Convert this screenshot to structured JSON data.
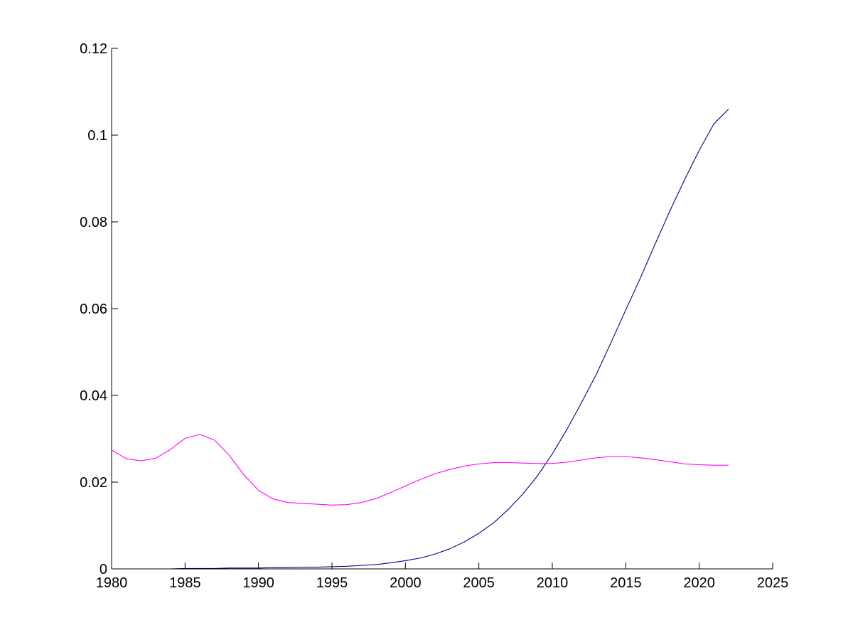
{
  "chart_data": {
    "type": "line",
    "title": "",
    "xlabel": "",
    "ylabel": "",
    "xlim": [
      1980,
      2025
    ],
    "ylim": [
      0,
      0.12
    ],
    "grid": false,
    "x_ticks": [
      1980,
      1985,
      1990,
      1995,
      2000,
      2005,
      2010,
      2015,
      2020,
      2025
    ],
    "x_tick_labels": [
      "1980",
      "1985",
      "1990",
      "1995",
      "2000",
      "2005",
      "2010",
      "2015",
      "2020",
      "2025"
    ],
    "y_ticks": [
      0,
      0.02,
      0.04,
      0.06,
      0.08,
      0.1,
      0.12
    ],
    "y_tick_labels": [
      "0",
      "0.02",
      "0.04",
      "0.06",
      "0.08",
      "0.1",
      "0.12"
    ],
    "colors": {
      "axis": "#000000",
      "background": "#ffffff"
    },
    "series": [
      {
        "color": "#00008b",
        "x": [
          1980,
          1981,
          1982,
          1983,
          1984,
          1985,
          1986,
          1987,
          1988,
          1989,
          1990,
          1991,
          1992,
          1993,
          1994,
          1995,
          1996,
          1997,
          1998,
          1999,
          2000,
          2001,
          2002,
          2003,
          2004,
          2005,
          2006,
          2007,
          2008,
          2009,
          2010,
          2011,
          2012,
          2013,
          2014,
          2015,
          2016,
          2017,
          2018,
          2019,
          2020,
          2021,
          2022
        ],
        "values": [
          0.0,
          0.0,
          0.0,
          0.0,
          0.0,
          0.0001,
          0.0001,
          0.0001,
          0.0002,
          0.0002,
          0.0002,
          0.0003,
          0.0003,
          0.0004,
          0.0004,
          0.0005,
          0.0006,
          0.0008,
          0.001,
          0.0014,
          0.0019,
          0.0025,
          0.0034,
          0.0046,
          0.0062,
          0.0082,
          0.0106,
          0.0137,
          0.0173,
          0.0215,
          0.0265,
          0.0322,
          0.0384,
          0.0449,
          0.0522,
          0.0597,
          0.0671,
          0.0749,
          0.0825,
          0.0897,
          0.0965,
          0.1026,
          0.106
        ]
      },
      {
        "color": "#ff00ff",
        "x": [
          1980,
          1981,
          1982,
          1983,
          1984,
          1985,
          1986,
          1987,
          1988,
          1989,
          1990,
          1991,
          1992,
          1993,
          1994,
          1995,
          1996,
          1997,
          1998,
          1999,
          2000,
          2001,
          2002,
          2003,
          2004,
          2005,
          2006,
          2007,
          2008,
          2009,
          2010,
          2011,
          2012,
          2013,
          2014,
          2015,
          2016,
          2017,
          2018,
          2019,
          2020,
          2021,
          2022
        ],
        "values": [
          0.0274,
          0.0254,
          0.0249,
          0.0255,
          0.0275,
          0.0301,
          0.031,
          0.0297,
          0.0262,
          0.0217,
          0.0181,
          0.0161,
          0.0153,
          0.0151,
          0.0149,
          0.0147,
          0.0148,
          0.0153,
          0.0162,
          0.0176,
          0.0191,
          0.0206,
          0.0219,
          0.0229,
          0.0237,
          0.0242,
          0.0245,
          0.0245,
          0.0244,
          0.0243,
          0.0243,
          0.0246,
          0.0251,
          0.0256,
          0.0259,
          0.0259,
          0.0256,
          0.0252,
          0.0247,
          0.0242,
          0.024,
          0.0239,
          0.0239
        ]
      }
    ]
  }
}
